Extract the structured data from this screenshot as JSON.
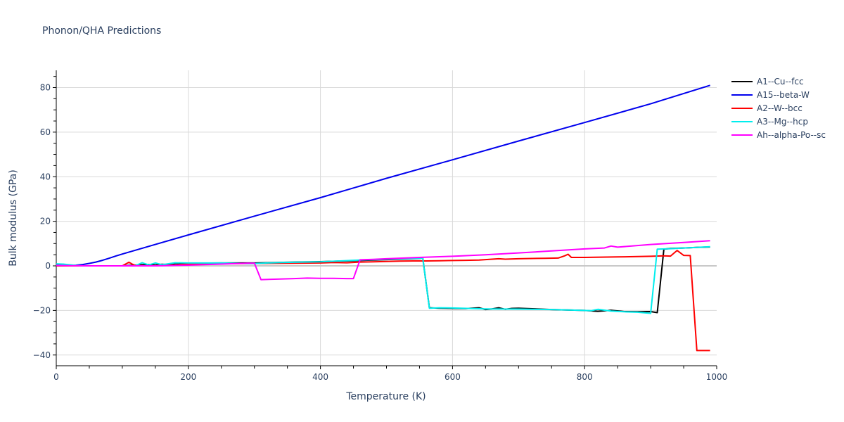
{
  "chart_data": {
    "type": "line",
    "title": "Phonon/QHA Predictions",
    "xlabel": "Temperature (K)",
    "ylabel": "Bulk modulus (GPa)",
    "xlim": [
      0,
      1000
    ],
    "ylim": [
      -45,
      88
    ],
    "xticks": [
      0,
      200,
      400,
      600,
      800,
      1000
    ],
    "yticks": [
      -40,
      -20,
      0,
      20,
      40,
      60,
      80
    ],
    "grid": true,
    "legend_position": "right",
    "series": [
      {
        "name": "A1--Cu--fcc",
        "color": "#000000",
        "x": [
          0,
          10,
          20,
          30,
          40,
          50,
          60,
          70,
          80,
          90,
          100,
          110,
          120,
          130,
          140,
          150,
          160,
          170,
          180,
          190,
          200,
          250,
          300,
          350,
          400,
          450,
          500,
          550,
          555,
          565,
          580,
          600,
          620,
          640,
          650,
          660,
          670,
          680,
          690,
          700,
          750,
          800,
          820,
          840,
          860,
          880,
          900,
          910,
          920,
          930,
          950,
          970,
          990
        ],
        "y": [
          0.8,
          0.7,
          0.3,
          0.1,
          0.0,
          0.0,
          0.0,
          0.0,
          0.0,
          0.0,
          0.0,
          0.2,
          0.3,
          0.5,
          0.6,
          0.4,
          0.7,
          0.6,
          1.0,
          1.2,
          1.2,
          1.3,
          1.3,
          1.6,
          1.9,
          2.3,
          2.8,
          3.3,
          3.5,
          -18.8,
          -19.0,
          -19.1,
          -19.2,
          -18.8,
          -19.6,
          -19.3,
          -18.8,
          -19.5,
          -19.1,
          -19.0,
          -19.6,
          -20.0,
          -20.4,
          -19.9,
          -20.5,
          -20.6,
          -20.5,
          -21.0,
          7.5,
          7.8,
          8.0,
          8.3,
          8.5
        ]
      },
      {
        "name": "A15--beta-W",
        "color": "#0000ee",
        "x": [
          0,
          10,
          20,
          30,
          40,
          50,
          60,
          70,
          80,
          90,
          100,
          150,
          200,
          300,
          400,
          500,
          600,
          700,
          800,
          900,
          990
        ],
        "y": [
          0.3,
          0.2,
          0.2,
          0.3,
          0.6,
          1.1,
          1.7,
          2.5,
          3.4,
          4.4,
          5.3,
          9.6,
          13.9,
          22.3,
          30.6,
          39.3,
          47.6,
          56.0,
          64.3,
          72.7,
          81.0
        ]
      },
      {
        "name": "A2--W--bcc",
        "color": "#ff0000",
        "x": [
          0,
          20,
          50,
          80,
          100,
          110,
          115,
          120,
          140,
          160,
          180,
          200,
          250,
          300,
          350,
          400,
          420,
          440,
          460,
          480,
          500,
          520,
          540,
          560,
          580,
          600,
          620,
          640,
          660,
          670,
          680,
          700,
          720,
          740,
          760,
          770,
          775,
          780,
          800,
          850,
          900,
          920,
          930,
          940,
          950,
          960,
          970,
          990
        ],
        "y": [
          0.0,
          0.0,
          0.0,
          0.0,
          0.0,
          1.6,
          0.8,
          0.2,
          0.0,
          0.2,
          0.4,
          0.8,
          1.0,
          1.0,
          1.2,
          1.3,
          1.5,
          1.4,
          1.7,
          1.8,
          2.0,
          2.1,
          2.2,
          2.2,
          2.3,
          2.4,
          2.5,
          2.6,
          3.0,
          3.2,
          3.0,
          3.2,
          3.3,
          3.4,
          3.5,
          4.5,
          5.2,
          3.8,
          3.8,
          4.0,
          4.3,
          4.5,
          4.4,
          6.9,
          4.7,
          4.6,
          -38.0,
          -38.0
        ]
      },
      {
        "name": "A3--Mg--hcp",
        "color": "#00eeee",
        "x": [
          0,
          10,
          20,
          30,
          40,
          60,
          80,
          100,
          120,
          130,
          140,
          150,
          160,
          180,
          200,
          250,
          290,
          300,
          320,
          340,
          360,
          400,
          450,
          500,
          550,
          555,
          565,
          580,
          600,
          650,
          700,
          750,
          800,
          810,
          820,
          840,
          860,
          880,
          900,
          910,
          930,
          950,
          970,
          990
        ],
        "y": [
          0.9,
          0.8,
          0.5,
          0.2,
          0.0,
          0.0,
          0.0,
          0.0,
          0.1,
          1.4,
          0.4,
          1.3,
          0.5,
          1.4,
          1.3,
          1.3,
          1.0,
          1.0,
          1.3,
          1.5,
          1.6,
          1.8,
          2.5,
          3.0,
          3.4,
          3.5,
          -19.0,
          -18.8,
          -18.9,
          -19.3,
          -19.4,
          -19.6,
          -20.0,
          -20.1,
          -19.5,
          -20.3,
          -20.6,
          -20.8,
          -21.3,
          7.5,
          7.7,
          8.0,
          8.3,
          8.6
        ]
      },
      {
        "name": "Ah--alpha-Po--sc",
        "color": "#ff00ff",
        "x": [
          0,
          20,
          50,
          80,
          100,
          150,
          200,
          250,
          290,
          300,
          310,
          330,
          360,
          380,
          400,
          420,
          440,
          450,
          460,
          480,
          500,
          550,
          600,
          650,
          700,
          750,
          800,
          830,
          840,
          850,
          900,
          950,
          990
        ],
        "y": [
          0.2,
          0.1,
          0.0,
          0.0,
          0.0,
          0.0,
          0.3,
          0.8,
          1.2,
          1.2,
          -6.2,
          -6.0,
          -5.7,
          -5.5,
          -5.6,
          -5.6,
          -5.7,
          -5.7,
          2.7,
          2.9,
          3.2,
          3.8,
          4.3,
          5.0,
          5.8,
          6.7,
          7.6,
          8.0,
          8.9,
          8.4,
          9.6,
          10.5,
          11.3
        ]
      }
    ]
  },
  "header": {
    "title": "Phonon/QHA Predictions"
  },
  "axes": {
    "xlabel": "Temperature (K)",
    "ylabel": "Bulk modulus (GPa)"
  },
  "legend": {
    "items": [
      {
        "label": "A1--Cu--fcc",
        "color": "#000000"
      },
      {
        "label": "A15--beta-W",
        "color": "#0000ee"
      },
      {
        "label": "A2--W--bcc",
        "color": "#ff0000"
      },
      {
        "label": "A3--Mg--hcp",
        "color": "#00eeee"
      },
      {
        "label": "Ah--alpha-Po--sc",
        "color": "#ff00ff"
      }
    ]
  }
}
